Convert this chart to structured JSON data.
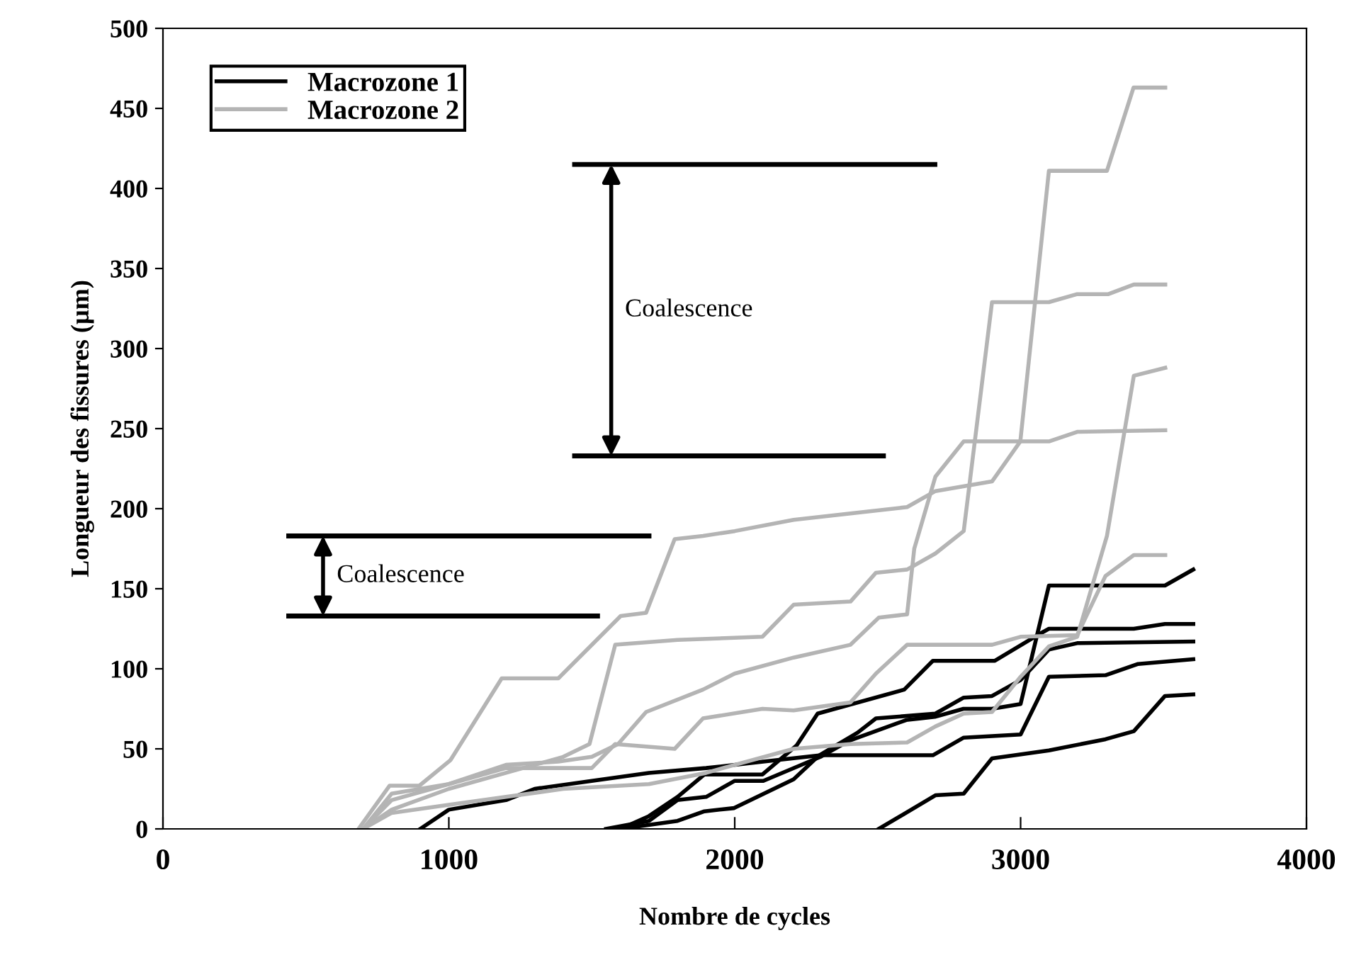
{
  "chart_data": {
    "type": "line",
    "xlabel": "Nombre de cycles",
    "ylabel": "Longueur des fissures (µm)",
    "xlim": [
      0,
      4000
    ],
    "xticks": [
      0,
      1000,
      2000,
      3000,
      4000
    ],
    "ylim": [
      0,
      500
    ],
    "yticks": [
      0,
      50,
      100,
      150,
      200,
      250,
      300,
      350,
      400,
      450,
      500
    ],
    "grid": false,
    "legend": "top left",
    "marker": "none",
    "line_style": "solid",
    "series": [
      {
        "name": "Macrozone 1",
        "color": "#000000",
        "x": [
          900,
          1000,
          1200,
          1300,
          1500,
          1700,
          1900,
          2100,
          2301,
          2693,
          2801,
          3000,
          3099,
          3297,
          3411,
          3604
        ],
        "values": [
          0,
          12,
          18,
          25,
          30,
          35,
          38,
          42,
          46,
          46,
          57,
          59,
          95,
          96,
          103,
          106
        ]
      },
      {
        "color": "#000000",
        "x": [
          1550,
          1700,
          1800,
          1900,
          2000,
          2100,
          2300,
          2400,
          2600,
          2700,
          2800,
          2900,
          3000,
          3099,
          3505,
          3604
        ],
        "values": [
          0,
          5,
          18,
          20,
          30,
          30,
          45,
          55,
          68,
          70,
          75,
          75,
          78,
          152,
          152,
          162
        ]
      },
      {
        "color": "#000000",
        "x": [
          1600,
          1700,
          1800,
          1894,
          2097,
          2216,
          2290,
          2593,
          2693,
          2910,
          3059,
          3099,
          3396,
          3505,
          3604
        ],
        "values": [
          0,
          8,
          20,
          34,
          34,
          52,
          72,
          87,
          105,
          105,
          121,
          125,
          125,
          128,
          128
        ]
      },
      {
        "color": "#000000",
        "x": [
          1600,
          1800,
          1894,
          1998,
          2206,
          2296,
          2429,
          2494,
          2702,
          2801,
          2900,
          3000,
          3099,
          3198,
          3604
        ],
        "values": [
          0,
          5,
          11,
          13,
          31,
          46,
          60,
          69,
          72,
          82,
          83,
          93,
          112,
          116,
          117
        ]
      },
      {
        "color": "#000000",
        "x": [
          2504,
          2702,
          2801,
          2900,
          3099,
          3297,
          3396,
          3505,
          3604
        ],
        "values": [
          0,
          21,
          22,
          44,
          49,
          56,
          61,
          83,
          84
        ]
      },
      {
        "name": "Macrozone 2",
        "color": "#b4b4b4",
        "x": [
          684,
          793,
          897,
          1006,
          1185,
          1383,
          1601,
          1690,
          1790,
          1889,
          2000,
          2206,
          2405,
          2603,
          2702,
          2900,
          2999,
          3099,
          3302,
          3395,
          3506
        ],
        "values": [
          0,
          27,
          27,
          43,
          94,
          94,
          133,
          135,
          181,
          183,
          186,
          193,
          197,
          201,
          211,
          217,
          242,
          411,
          411,
          463,
          463
        ]
      },
      {
        "color": "#b4b4b4",
        "x": [
          700,
          800,
          1000,
          1200,
          1400,
          1492,
          1582,
          1800,
          2097,
          2206,
          2405,
          2494,
          2603,
          2702,
          2801,
          2900,
          3099,
          3198,
          3307,
          3396,
          3506
        ],
        "values": [
          0,
          12,
          25,
          35,
          45,
          53,
          115,
          118,
          120,
          140,
          142,
          160,
          162,
          172,
          186,
          329,
          329,
          334,
          334,
          340,
          340
        ]
      },
      {
        "color": "#b4b4b4",
        "x": [
          700,
          800,
          1000,
          1200,
          1383,
          1500,
          1592,
          1690,
          1889,
          2000,
          2206,
          2405,
          2504,
          2603,
          2628,
          2702,
          2801,
          3099,
          3198,
          3506
        ],
        "values": [
          0,
          22,
          28,
          40,
          42,
          45,
          53,
          73,
          87,
          97,
          107,
          115,
          132,
          134,
          175,
          220,
          242,
          242,
          248,
          249
        ]
      },
      {
        "color": "#b4b4b4",
        "x": [
          700,
          800,
          1000,
          1200,
          1400,
          1700,
          1900,
          2000,
          2206,
          2405,
          2603,
          2702,
          2801,
          2900,
          3000,
          3099,
          3198,
          3302,
          3396,
          3506
        ],
        "values": [
          0,
          10,
          15,
          20,
          25,
          28,
          35,
          40,
          50,
          53,
          54,
          64,
          72,
          73,
          95,
          114,
          120,
          183,
          283,
          288
        ]
      },
      {
        "color": "#b4b4b4",
        "x": [
          700,
          800,
          1000,
          1200,
          1500,
          1582,
          1790,
          1889,
          2097,
          2206,
          2405,
          2494,
          2603,
          2702,
          2900,
          3000,
          3198,
          3297,
          3396,
          3506
        ],
        "values": [
          0,
          18,
          28,
          38,
          38,
          53,
          50,
          69,
          75,
          74,
          79,
          97,
          115,
          115,
          115,
          120,
          121,
          158,
          171,
          171
        ]
      }
    ],
    "ref_lines": [
      {
        "axis": "y",
        "value": 415,
        "color": "#000000"
      },
      {
        "axis": "y",
        "value": 233,
        "color": "#000000"
      },
      {
        "axis": "y",
        "value": 183,
        "color": "#000000"
      },
      {
        "axis": "y",
        "value": 133,
        "color": "#000000"
      }
    ],
    "annotations": [
      "Coalescence",
      "Coalescence"
    ]
  }
}
